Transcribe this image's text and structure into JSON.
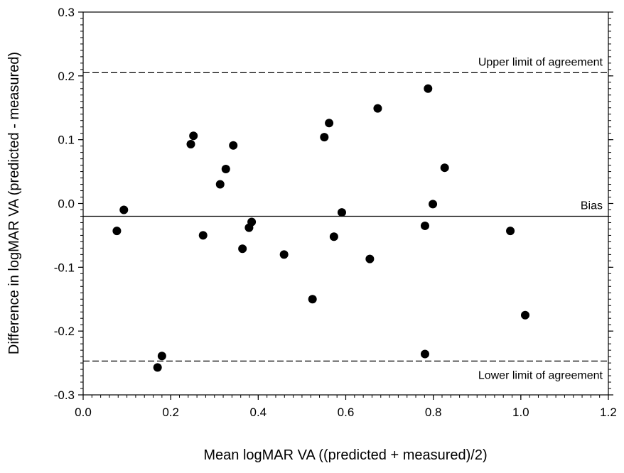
{
  "chart_data": {
    "type": "scatter",
    "xlabel": "Mean logMAR VA ((predicted + measured)/2)",
    "ylabel": "Difference in logMAR VA (predicted - measured)",
    "xlim": [
      0.0,
      1.2
    ],
    "ylim": [
      -0.3,
      0.3
    ],
    "x_ticks": [
      0.0,
      0.2,
      0.4,
      0.6,
      0.8,
      1.0,
      1.2
    ],
    "x_tick_labels": [
      "0.0",
      "0.2",
      "0.4",
      "0.6",
      "0.8",
      "1.0",
      "1.2"
    ],
    "y_ticks": [
      -0.3,
      -0.2,
      -0.1,
      0.0,
      0.1,
      0.2,
      0.3
    ],
    "y_tick_labels": [
      "-0.3",
      "-0.2",
      "-0.1",
      "0.0",
      "0.1",
      "0.2",
      "0.3"
    ],
    "grid": false,
    "reference_lines": [
      {
        "label": "Upper limit of agreement",
        "y": 0.205,
        "style": "dashed"
      },
      {
        "label": "Bias",
        "y": -0.02,
        "style": "solid"
      },
      {
        "label": "Lower limit of agreement",
        "y": -0.247,
        "style": "dashed"
      }
    ],
    "points": [
      {
        "x": 0.077,
        "y": -0.043
      },
      {
        "x": 0.093,
        "y": -0.01
      },
      {
        "x": 0.17,
        "y": -0.257
      },
      {
        "x": 0.18,
        "y": -0.239
      },
      {
        "x": 0.246,
        "y": 0.093
      },
      {
        "x": 0.252,
        "y": 0.106
      },
      {
        "x": 0.274,
        "y": -0.05
      },
      {
        "x": 0.313,
        "y": 0.03
      },
      {
        "x": 0.326,
        "y": 0.054
      },
      {
        "x": 0.343,
        "y": 0.091
      },
      {
        "x": 0.364,
        "y": -0.071
      },
      {
        "x": 0.379,
        "y": -0.038
      },
      {
        "x": 0.385,
        "y": -0.029
      },
      {
        "x": 0.459,
        "y": -0.08
      },
      {
        "x": 0.524,
        "y": -0.15
      },
      {
        "x": 0.551,
        "y": 0.104
      },
      {
        "x": 0.562,
        "y": 0.126
      },
      {
        "x": 0.573,
        "y": -0.052
      },
      {
        "x": 0.591,
        "y": -0.014
      },
      {
        "x": 0.655,
        "y": -0.087
      },
      {
        "x": 0.673,
        "y": 0.149
      },
      {
        "x": 0.781,
        "y": -0.035
      },
      {
        "x": 0.781,
        "y": -0.236
      },
      {
        "x": 0.788,
        "y": 0.18
      },
      {
        "x": 0.799,
        "y": -0.001
      },
      {
        "x": 0.826,
        "y": 0.056
      },
      {
        "x": 0.976,
        "y": -0.043
      },
      {
        "x": 1.01,
        "y": -0.175
      }
    ]
  }
}
